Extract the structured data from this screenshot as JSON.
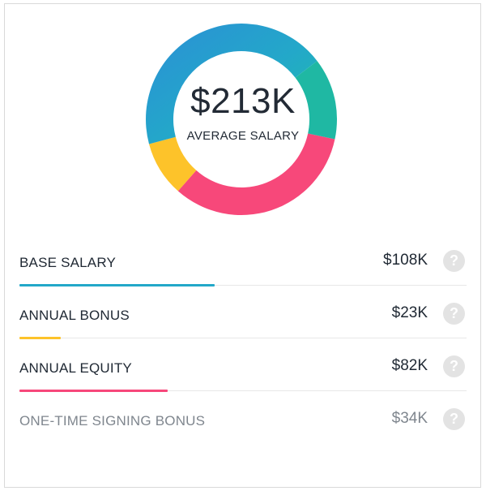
{
  "summary": {
    "value": "$213K",
    "label": "AVERAGE SALARY"
  },
  "colors": {
    "base_salary": "#23a8c9",
    "annual_bonus": "#fdc32a",
    "annual_equity": "#f7487a",
    "signing_bonus": "#1fb8a3"
  },
  "chart_data": {
    "type": "pie",
    "style": "donut",
    "labels": [
      "BASE SALARY",
      "ANNUAL BONUS",
      "ANNUAL EQUITY",
      "ONE-TIME SIGNING BONUS"
    ],
    "values": [
      108,
      23,
      82,
      34
    ]
  },
  "components": [
    {
      "label": "BASE SALARY",
      "value": "$108K",
      "amount": 108,
      "color": "#23a8c9",
      "muted": false
    },
    {
      "label": "ANNUAL BONUS",
      "value": "$23K",
      "amount": 23,
      "color": "#fdc32a",
      "muted": false
    },
    {
      "label": "ANNUAL EQUITY",
      "value": "$82K",
      "amount": 82,
      "color": "#f7487a",
      "muted": false
    },
    {
      "label": "ONE-TIME SIGNING BONUS",
      "value": "$34K",
      "amount": 34,
      "color": "#1fb8a3",
      "muted": true
    }
  ],
  "icons": {
    "help": "help-circle-icon"
  }
}
